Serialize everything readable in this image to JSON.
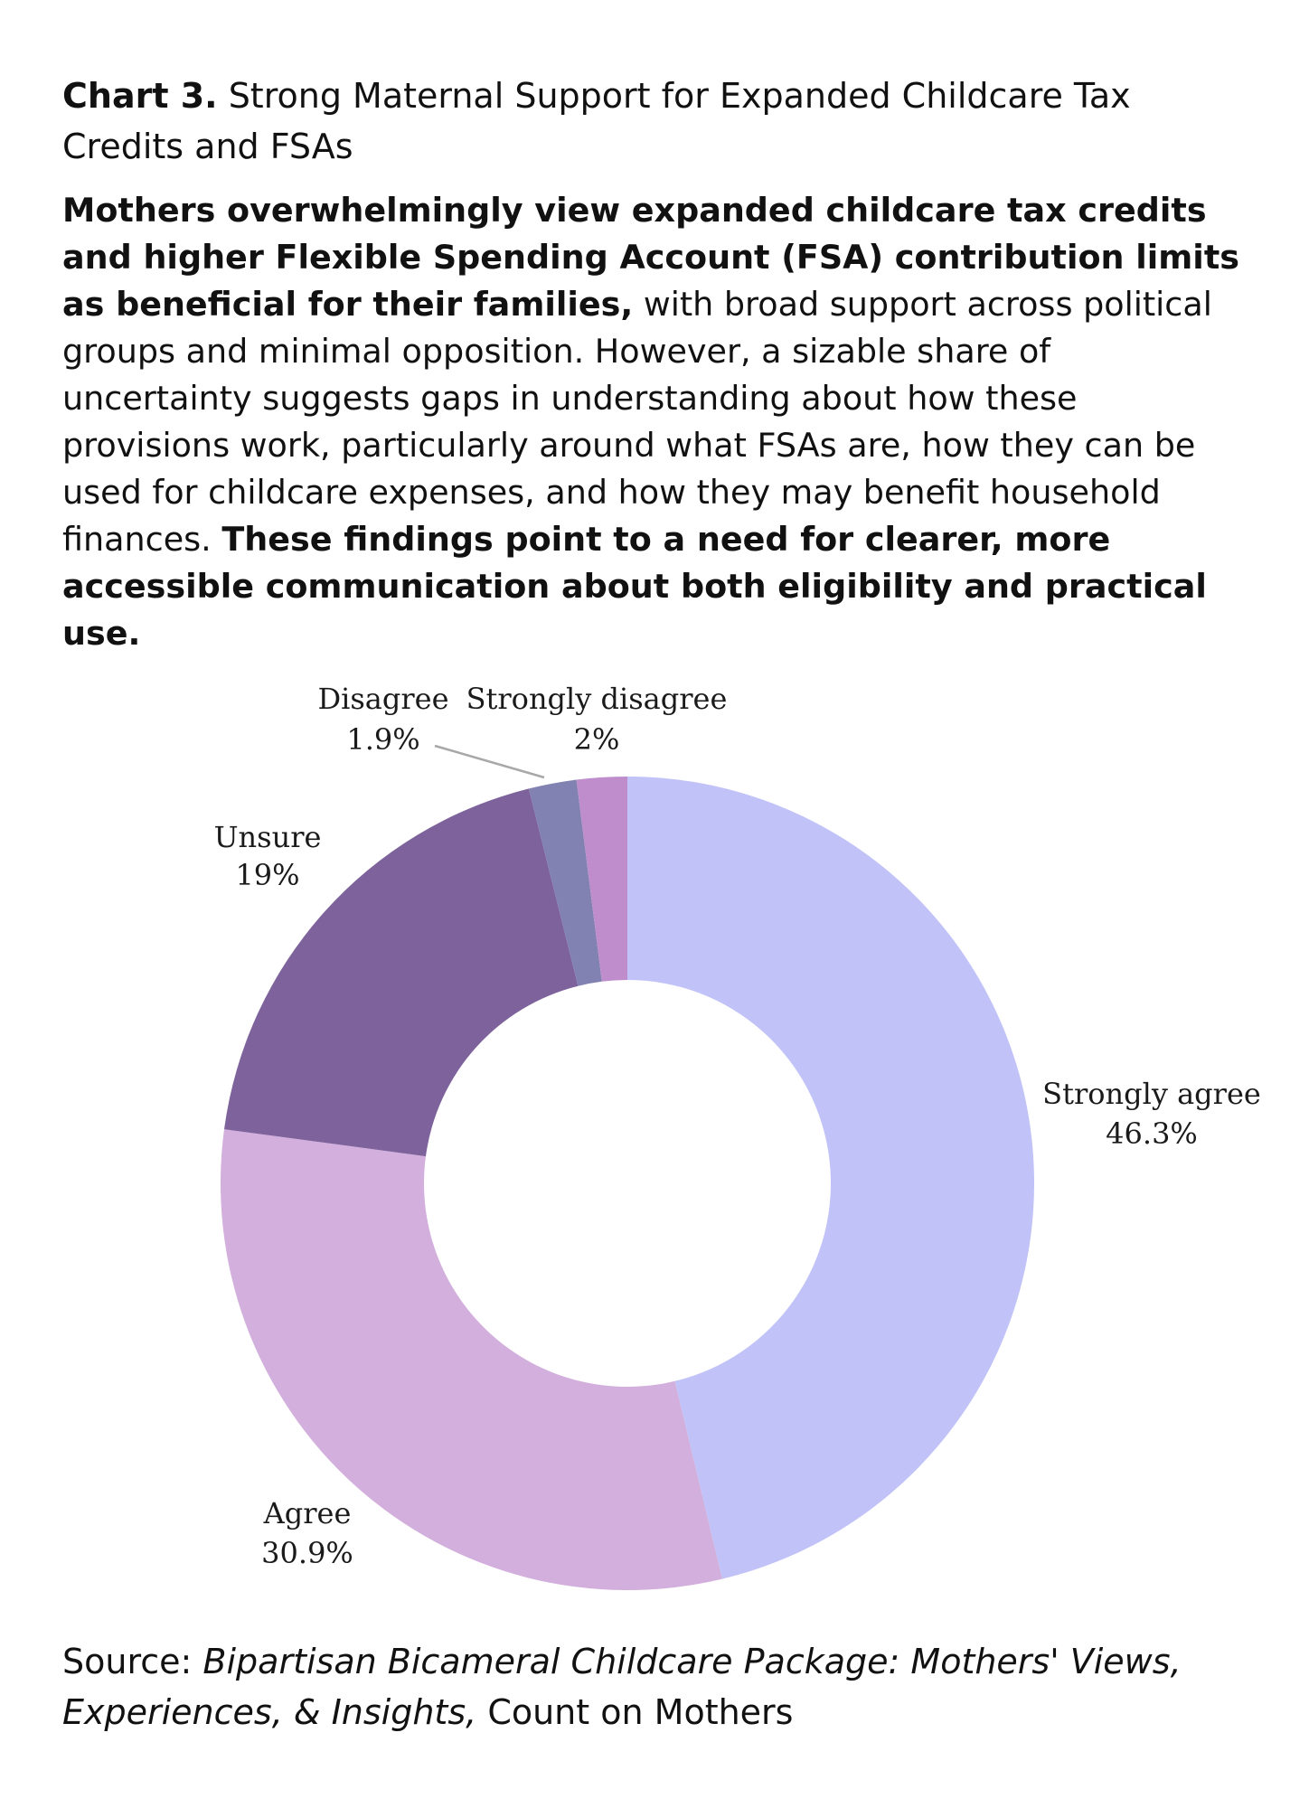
{
  "title": {
    "prefix": "Chart 3.",
    "text": "Strong Maternal Support for Expanded Childcare Tax Credits and FSAs"
  },
  "summary": {
    "bold_1": "Mothers overwhelmingly view expanded childcare tax credits and higher Flexible Spending Account (FSA) contribution limits as beneficial for their families,",
    "text_1": "with broad support across political groups and minimal opposition. However, a sizable share of uncertainty suggests gaps in understanding about how these provisions work, particularly around what FSAs are, how they can be used for childcare expenses, and how they may benefit household finances.",
    "bold_2": "These findings point to a need for clearer, more accessible communication about both eligibility and practical use."
  },
  "chart_data": {
    "type": "pie",
    "variant": "donut",
    "title": "Strong Maternal Support for Expanded Childcare Tax Credits and FSAs",
    "categories": [
      "Strongly agree",
      "Agree",
      "Unsure",
      "Disagree",
      "Strongly disagree"
    ],
    "values": [
      46.3,
      30.9,
      19,
      1.9,
      2
    ],
    "labels": [
      "46.3%",
      "30.9%",
      "19%",
      "1.9%",
      "2%"
    ],
    "colors": [
      "#c0c2f8",
      "#d2afdc",
      "#7e629c",
      "#8282b2",
      "#bf8dcb"
    ],
    "start": "top",
    "direction": "clockwise"
  },
  "source": {
    "prefix": "Source:",
    "italic": "Bipartisan Bicameral Childcare Package: Mothers' Views, Experiences, & Insights,",
    "suffix": "Count on Mothers"
  }
}
